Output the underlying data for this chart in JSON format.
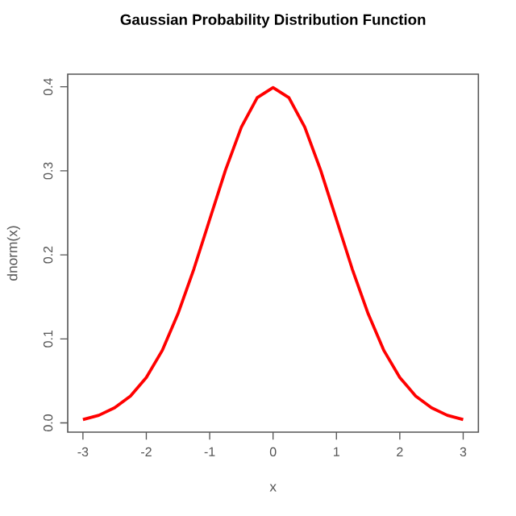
{
  "chart_data": {
    "type": "line",
    "title": "Gaussian Probability Distribution Function",
    "xlabel": "x",
    "ylabel": "dnorm(x)",
    "x": [
      -3,
      -2.75,
      -2.5,
      -2.25,
      -2,
      -1.75,
      -1.5,
      -1.25,
      -1,
      -0.75,
      -0.5,
      -0.25,
      0,
      0.25,
      0.5,
      0.75,
      1,
      1.25,
      1.5,
      1.75,
      2,
      2.25,
      2.5,
      2.75,
      3
    ],
    "values": [
      0.004,
      0.009,
      0.018,
      0.032,
      0.054,
      0.086,
      0.13,
      0.183,
      0.242,
      0.301,
      0.352,
      0.387,
      0.399,
      0.387,
      0.352,
      0.301,
      0.242,
      0.183,
      0.13,
      0.086,
      0.054,
      0.032,
      0.018,
      0.009,
      0.004
    ],
    "color": "#ff0000",
    "line_style": "solid",
    "marker": "none",
    "xlim": [
      -3.24,
      3.24
    ],
    "ylim": [
      -0.011,
      0.415
    ],
    "xticks": [
      -3,
      -2,
      -1,
      0,
      1,
      2,
      3
    ],
    "yticks": [
      {
        "value": 0,
        "label": "0.0"
      },
      {
        "value": 0.1,
        "label": "0.1"
      },
      {
        "value": 0.2,
        "label": "0.2"
      },
      {
        "value": 0.3,
        "label": "0.3"
      },
      {
        "value": 0.4,
        "label": "0.4"
      }
    ]
  }
}
